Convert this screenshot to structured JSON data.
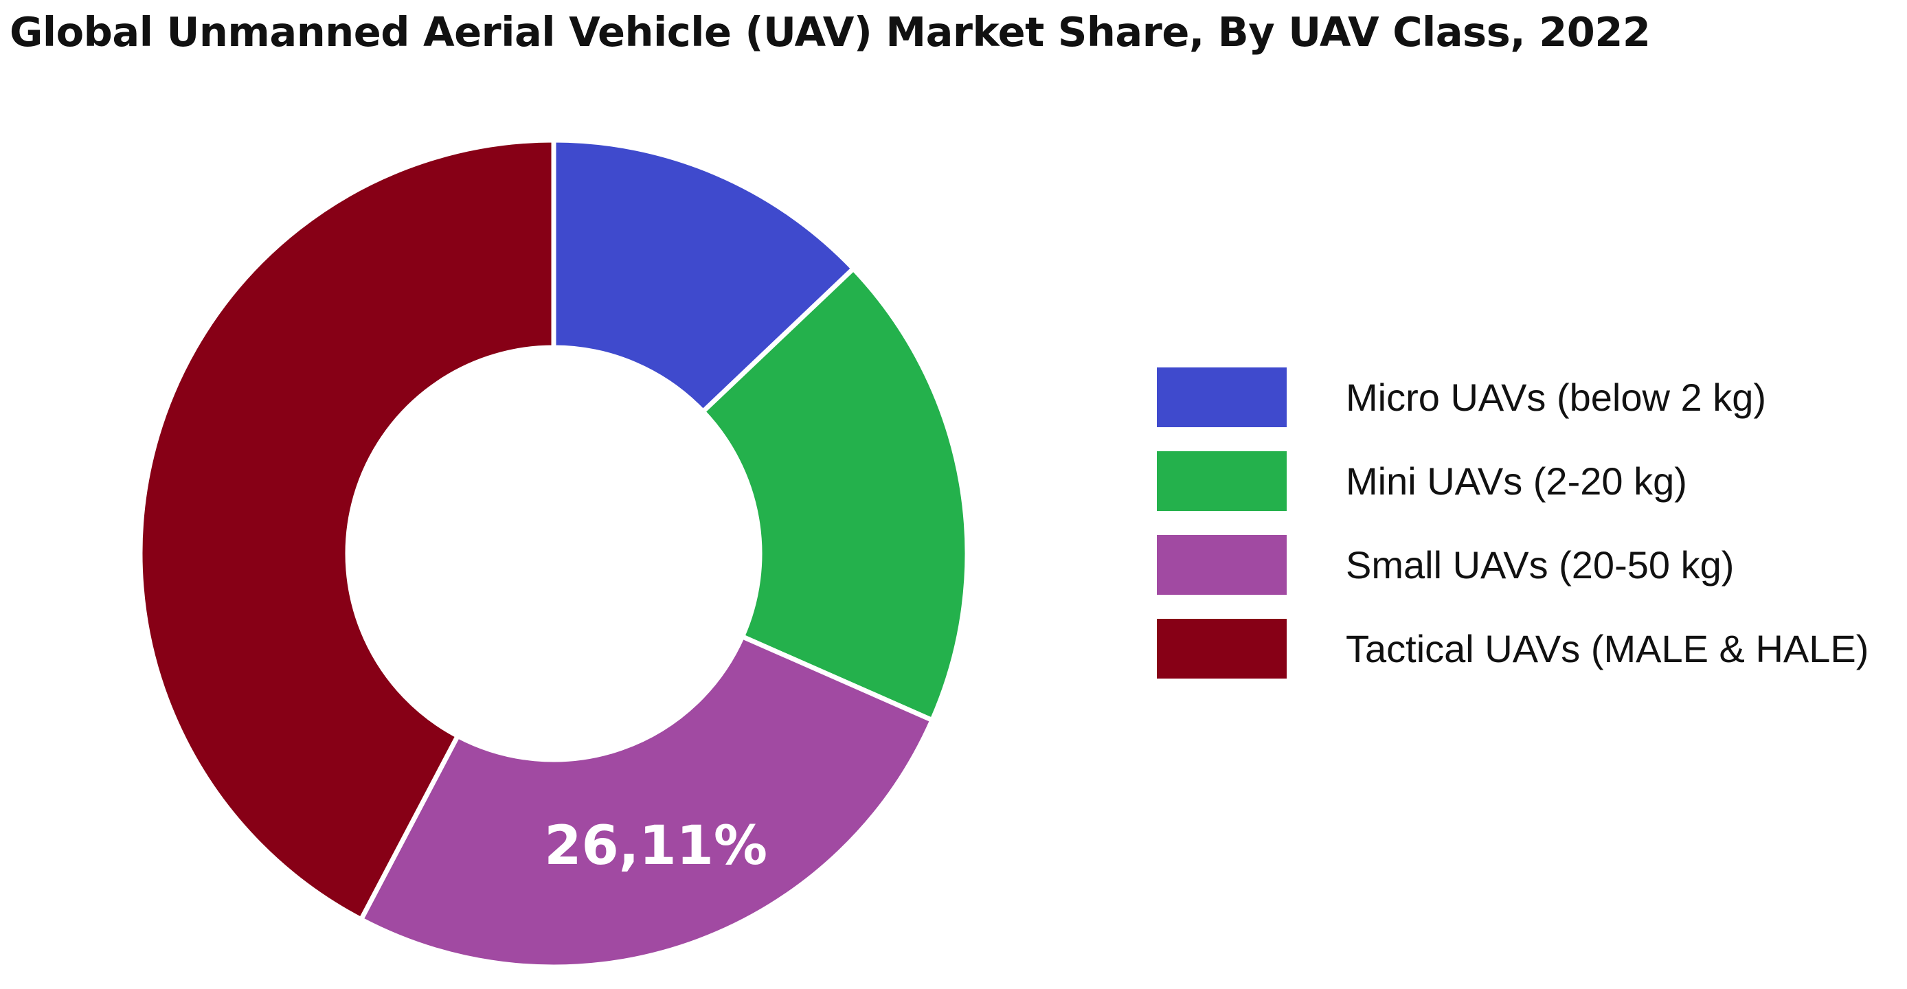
{
  "chart_data": {
    "type": "pie",
    "title": "Global Unmanned Aerial Vehicle (UAV) Market Share, By UAV Class, 2022",
    "donut": true,
    "categories": [
      "Micro UAVs (below 2 kg)",
      "Mini UAVs (2-20 kg)",
      "Small UAVs (20-50 kg)",
      "Tactical UAVs (MALE & HALE)"
    ],
    "values": [
      12.9,
      18.7,
      26.11,
      42.29
    ],
    "colors": [
      "#3f4acd",
      "#24b14c",
      "#a14aa2",
      "#870016"
    ],
    "data_labels": [
      "",
      "",
      "26,11%",
      ""
    ],
    "legend": "right",
    "start_angle_deg": 0,
    "direction": "clockwise"
  }
}
